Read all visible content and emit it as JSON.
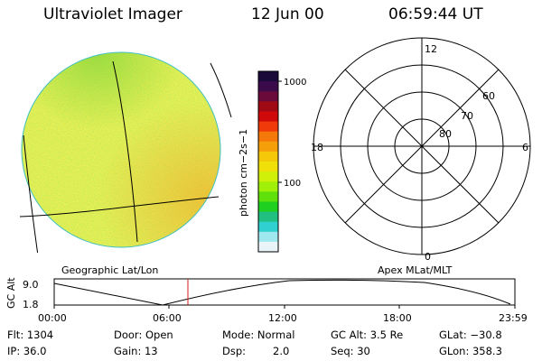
{
  "header": {
    "instrument": "Ultraviolet Imager",
    "date": "12 Jun 00",
    "time": "06:59:44 UT"
  },
  "colorbar": {
    "label_html": "photon cm<tspan baseline-shift='super' font-size='8'>−2</tspan>s<tspan baseline-shift='super' font-size='8'>−1</tspan>",
    "unit_label": "photon cm−2s−1",
    "ticks": [
      "1000",
      "100"
    ],
    "colors": [
      "#1a0a3a",
      "#3a0a4a",
      "#6a0a3a",
      "#a00a14",
      "#d00a0a",
      "#f03a0a",
      "#f5780a",
      "#f5a00a",
      "#f5c80a",
      "#f0e00a",
      "#d0f00a",
      "#a0f00a",
      "#60e00a",
      "#20d020",
      "#20c080",
      "#30d0d0",
      "#a0e8f0",
      "#e8f4f8"
    ]
  },
  "polar": {
    "mlt_labels": {
      "top": "12",
      "left": "18",
      "right": "6",
      "bottom": "0"
    },
    "lat_labels": [
      "60",
      "70",
      "80"
    ]
  },
  "panel_titles": {
    "left": "Geographic Lat/Lon",
    "right": "Apex MLat/MLT"
  },
  "altitude": {
    "axis_label": "GC Alt",
    "y_ticks": [
      "9.0",
      "1.8"
    ],
    "x_ticks": [
      "00:00",
      "06:00",
      "12:00",
      "18:00",
      "23:59"
    ],
    "current_marker_color": "#d02020"
  },
  "status": {
    "flt": "Flt: 1304",
    "ip": "IP: 36.0",
    "door": "Door: Open",
    "gain": "Gain: 13",
    "mode": "Mode: Normal",
    "dsp_label": "Dsp:",
    "dsp_value": "2.0",
    "gc_alt": "GC Alt: 3.5 Re",
    "seq": "Seq: 30",
    "glat": "GLat: −30.8",
    "glon": "GLon: 358.3"
  }
}
